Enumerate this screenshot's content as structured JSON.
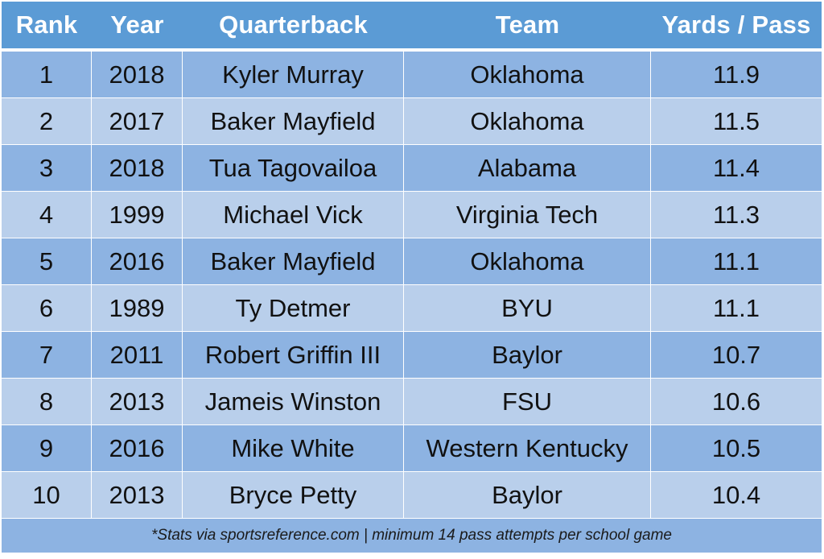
{
  "chart_data": {
    "type": "table",
    "columns": [
      "Rank",
      "Year",
      "Quarterback",
      "Team",
      "Yards / Pass"
    ],
    "rows": [
      [
        "1",
        "2018",
        "Kyler Murray",
        "Oklahoma",
        "11.9"
      ],
      [
        "2",
        "2017",
        "Baker Mayfield",
        "Oklahoma",
        "11.5"
      ],
      [
        "3",
        "2018",
        "Tua Tagovailoa",
        "Alabama",
        "11.4"
      ],
      [
        "4",
        "1999",
        "Michael Vick",
        "Virginia Tech",
        "11.3"
      ],
      [
        "5",
        "2016",
        "Baker Mayfield",
        "Oklahoma",
        "11.1"
      ],
      [
        "6",
        "1989",
        "Ty Detmer",
        "BYU",
        "11.1"
      ],
      [
        "7",
        "2011",
        "Robert Griffin III",
        "Baylor",
        "10.7"
      ],
      [
        "8",
        "2013",
        "Jameis Winston",
        "FSU",
        "10.6"
      ],
      [
        "9",
        "2016",
        "Mike White",
        "Western Kentucky",
        "10.5"
      ],
      [
        "10",
        "2013",
        "Bryce Petty",
        "Baylor",
        "10.4"
      ]
    ],
    "footnote": "*Stats via sportsreference.com | minimum 14 pass attempts per school game"
  },
  "colors": {
    "header": "#5b9bd5",
    "row_dark": "#8db3e2",
    "row_light": "#b9cfeb"
  }
}
